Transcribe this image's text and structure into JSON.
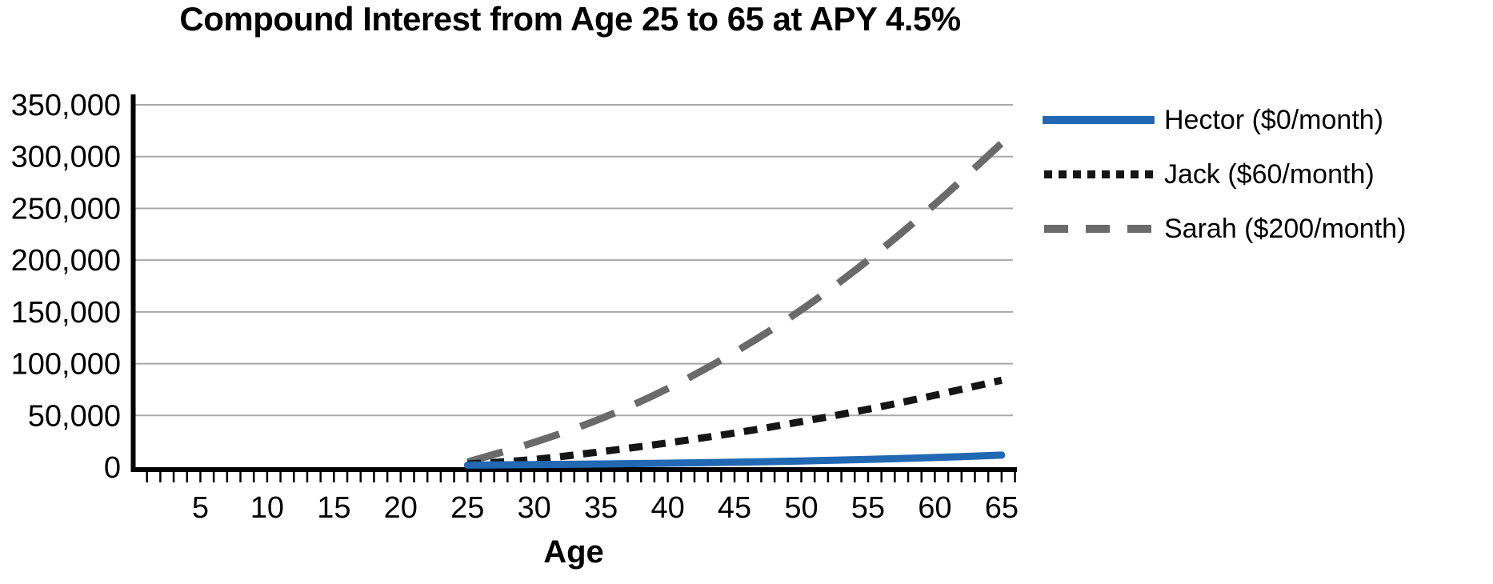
{
  "chart_data": {
    "type": "line",
    "title": "Compound Interest from Age 25 to 65 at APY 4.5%",
    "xlabel": "Age",
    "ylabel": "",
    "apy_label": "APY 4.5%",
    "xlim": [
      0,
      67
    ],
    "ylim": [
      0,
      350000
    ],
    "y_tick_step": 50000,
    "y_tick_labels": [
      "0",
      "50,000",
      "100,000",
      "150,000",
      "200,000",
      "250,000",
      "300,000",
      "350,000"
    ],
    "x_tick_labels": [
      "5",
      "10",
      "15",
      "20",
      "25",
      "30",
      "35",
      "40",
      "45",
      "50",
      "55",
      "60",
      "65"
    ],
    "x_minor_tick_every": 1,
    "grid": "horizontal",
    "legend_position": "right",
    "ages": [
      25,
      30,
      35,
      40,
      45,
      50,
      55,
      60,
      65
    ],
    "series": [
      {
        "name": "Hector",
        "label": "Hector ($0/month)",
        "monthly_contribution": "$0/month",
        "color": "#2268b2",
        "style": "solid",
        "values": [
          2000,
          2492,
          3106,
          3871,
          4823,
          6011,
          7491,
          9335,
          11633
        ]
      },
      {
        "name": "Jack",
        "label": "Jack ($60/month)",
        "monthly_contribution": "$60/month",
        "color": "#151515",
        "style": "dotted",
        "values": [
          3000,
          7500,
          15000,
          23500,
          33000,
          44000,
          56000,
          69500,
          84000
        ]
      },
      {
        "name": "Sarah",
        "label": "Sarah ($200/month)",
        "monthly_contribution": "$200/month",
        "color": "#6a6a6a",
        "style": "dashed",
        "values": [
          5000,
          24000,
          47000,
          76000,
          111000,
          152000,
          200000,
          254000,
          313000
        ]
      }
    ],
    "colors": {
      "gridline": "#a8a8a8",
      "axis": "#000000",
      "background": "#ffffff"
    }
  }
}
